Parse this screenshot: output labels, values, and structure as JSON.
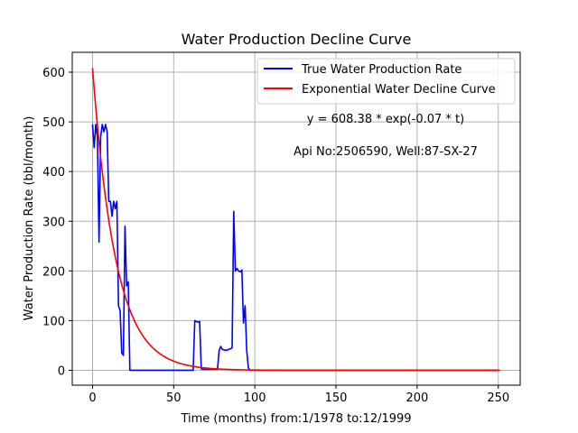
{
  "chart_data": {
    "type": "line",
    "title": "Water Production Decline Curve",
    "xlabel": "Time (months) from:1/1978 to:12/1999",
    "ylabel": "Water Production Rate (bbl/month)",
    "xlim": [
      -12.5,
      263.5
    ],
    "ylim": [
      -30,
      640
    ],
    "xticks": [
      0,
      50,
      100,
      150,
      200,
      250
    ],
    "yticks": [
      0,
      100,
      200,
      300,
      400,
      500,
      600
    ],
    "grid": true,
    "legend_position": "top-right",
    "annotations": [
      "y = 608.38 * exp(-0.07 * t)",
      "Api No:2506590, Well:87-SX-27"
    ],
    "colors": {
      "true_series": "#0000ff",
      "fit_series": "#ff0000",
      "grid": "#b0b0b0"
    },
    "series": [
      {
        "name": "True Water Production Rate",
        "color": "#0000ff",
        "x": [
          0,
          1,
          2,
          3,
          4,
          5,
          6,
          7,
          8,
          9,
          10,
          11,
          12,
          13,
          14,
          15,
          16,
          17,
          18,
          19,
          20,
          21,
          22,
          23,
          24,
          25,
          30,
          40,
          50,
          60,
          62,
          63,
          64,
          65,
          66,
          67,
          68,
          70,
          75,
          77,
          78,
          79,
          80,
          82,
          84,
          86,
          87,
          88,
          89,
          90,
          91,
          92,
          93,
          94,
          95,
          96,
          97,
          98,
          100,
          120,
          150,
          200,
          250
        ],
        "y": [
          495,
          448,
          495,
          470,
          258,
          470,
          495,
          480,
          495,
          480,
          340,
          340,
          310,
          340,
          325,
          340,
          130,
          120,
          35,
          30,
          290,
          170,
          178,
          0,
          0,
          0,
          0,
          0,
          0,
          0,
          0,
          100,
          98,
          97,
          98,
          3,
          2,
          2,
          2,
          2,
          40,
          48,
          42,
          40,
          42,
          45,
          320,
          200,
          205,
          200,
          198,
          202,
          95,
          130,
          40,
          5,
          0,
          0,
          0,
          0,
          0,
          0,
          0
        ]
      },
      {
        "name": "Exponential Water Decline Curve",
        "color": "#ff0000",
        "fit": {
          "a": 608.38,
          "b": 0.07,
          "x_start": 0,
          "x_end": 251
        }
      }
    ]
  }
}
